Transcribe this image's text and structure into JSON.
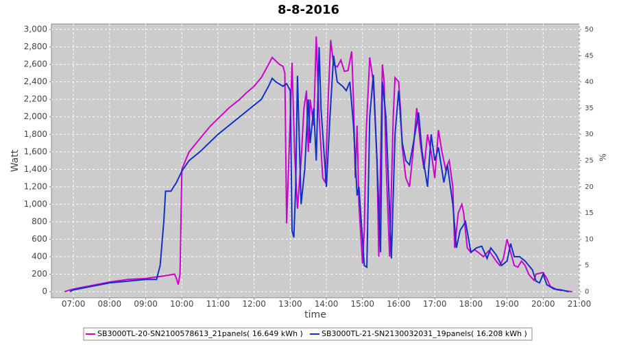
{
  "chart_data": {
    "type": "line",
    "title": "8-8-2016",
    "x_label": "time",
    "y_label": "Watt",
    "y2_label": "%",
    "xlim": [
      6.39,
      21.0
    ],
    "xticks": [
      {
        "value": 7,
        "label": "07:00"
      },
      {
        "value": 8,
        "label": "08:00"
      },
      {
        "value": 9,
        "label": "09:00"
      },
      {
        "value": 10,
        "label": "10:00"
      },
      {
        "value": 11,
        "label": "11:00"
      },
      {
        "value": 12,
        "label": "12:00"
      },
      {
        "value": 13,
        "label": "13:00"
      },
      {
        "value": 14,
        "label": "14:00"
      },
      {
        "value": 15,
        "label": "15:00"
      },
      {
        "value": 16,
        "label": "16:00"
      },
      {
        "value": 17,
        "label": "17:00"
      },
      {
        "value": 18,
        "label": "18:00"
      },
      {
        "value": 19,
        "label": "19:00"
      },
      {
        "value": 20,
        "label": "20:00"
      },
      {
        "value": 21,
        "label": "21:00"
      }
    ],
    "ylim": [
      -70,
      3063
    ],
    "yticks": [
      0,
      200,
      400,
      600,
      800,
      {
        "value": 1000,
        "label": "1,000"
      },
      {
        "value": 1200,
        "label": "1,200"
      },
      {
        "value": 1400,
        "label": "1,400"
      },
      {
        "value": 1600,
        "label": "1,600"
      },
      {
        "value": 1800,
        "label": "1,800"
      },
      {
        "value": 2000,
        "label": "2,000"
      },
      {
        "value": 2200,
        "label": "2,200"
      },
      {
        "value": 2400,
        "label": "2,400"
      },
      {
        "value": 2600,
        "label": "2,600"
      },
      {
        "value": 2800,
        "label": "2,800"
      },
      {
        "value": 3000,
        "label": "3,000"
      }
    ],
    "y2lim": [
      -1.17,
      51.05
    ],
    "y2ticks": [
      0,
      5,
      10,
      15,
      20,
      25,
      30,
      35,
      40,
      45,
      50
    ],
    "grid": true,
    "series": [
      {
        "name": "SB3000TL-20-SN2100578613_21panels( 16.649 kWh )",
        "color": "#cc00cc",
        "x": [
          6.75,
          7.0,
          7.5,
          8.0,
          8.5,
          9.0,
          9.5,
          9.8,
          9.85,
          9.9,
          9.95,
          10.0,
          10.2,
          10.5,
          10.8,
          11.0,
          11.3,
          11.6,
          11.8,
          12.0,
          12.2,
          12.4,
          12.5,
          12.6,
          12.7,
          12.8,
          12.85,
          12.9,
          13.0,
          13.05,
          13.12,
          13.2,
          13.3,
          13.38,
          13.45,
          13.5,
          13.55,
          13.65,
          13.72,
          13.8,
          13.9,
          13.97,
          14.05,
          14.12,
          14.2,
          14.3,
          14.4,
          14.5,
          14.6,
          14.7,
          14.75,
          14.8,
          14.85,
          14.9,
          15.0,
          15.05,
          15.1,
          15.2,
          15.3,
          15.4,
          15.45,
          15.5,
          15.55,
          15.6,
          15.65,
          15.75,
          15.85,
          15.9,
          16.0,
          16.05,
          16.1,
          16.2,
          16.3,
          16.4,
          16.5,
          16.6,
          16.7,
          16.8,
          16.9,
          17.0,
          17.1,
          17.2,
          17.3,
          17.4,
          17.5,
          17.55,
          17.65,
          17.75,
          17.8,
          17.9,
          18.0,
          18.1,
          18.2,
          18.35,
          18.5,
          18.7,
          18.8,
          18.9,
          19.0,
          19.1,
          19.2,
          19.3,
          19.4,
          19.5,
          19.6,
          19.7,
          19.75,
          19.8,
          20.0,
          20.1,
          20.2,
          20.4,
          20.6,
          20.8
        ],
        "values": [
          0,
          30,
          70,
          110,
          140,
          150,
          180,
          200,
          150,
          80,
          200,
          1400,
          1600,
          1750,
          1900,
          1980,
          2100,
          2200,
          2280,
          2350,
          2450,
          2600,
          2680,
          2640,
          2600,
          2580,
          2500,
          780,
          2000,
          2620,
          1600,
          950,
          1500,
          2100,
          2300,
          1600,
          2200,
          1900,
          2920,
          2000,
          1300,
          1250,
          2200,
          2880,
          2600,
          2570,
          2650,
          2520,
          2530,
          2750,
          2200,
          1300,
          1900,
          1000,
          320,
          700,
          1800,
          2680,
          2400,
          1500,
          400,
          1500,
          2600,
          2400,
          1500,
          400,
          2000,
          2450,
          2400,
          2100,
          1650,
          1300,
          1200,
          1600,
          2100,
          1700,
          1400,
          1800,
          1600,
          1300,
          1850,
          1600,
          1400,
          1500,
          1200,
          500,
          900,
          1000,
          900,
          500,
          450,
          480,
          450,
          400,
          470,
          350,
          300,
          380,
          600,
          450,
          300,
          280,
          350,
          300,
          200,
          150,
          130,
          200,
          220,
          150,
          60,
          20,
          10,
          0
        ]
      },
      {
        "name": "SB3000TL-21-SN2130032031_19panels( 16.208 kWh )",
        "color": "#1030c8",
        "x": [
          6.9,
          7.0,
          7.5,
          8.0,
          8.5,
          9.0,
          9.3,
          9.4,
          9.5,
          9.55,
          9.7,
          9.85,
          10.0,
          10.2,
          10.5,
          10.8,
          11.0,
          11.3,
          11.6,
          11.9,
          12.2,
          12.4,
          12.5,
          12.6,
          12.8,
          12.9,
          13.0,
          13.05,
          13.1,
          13.15,
          13.2,
          13.3,
          13.4,
          13.5,
          13.55,
          13.65,
          13.72,
          13.8,
          13.85,
          14.0,
          14.1,
          14.2,
          14.3,
          14.45,
          14.55,
          14.65,
          14.75,
          14.85,
          14.9,
          15.05,
          15.12,
          15.2,
          15.3,
          15.4,
          15.5,
          15.55,
          15.65,
          15.8,
          15.9,
          16.0,
          16.1,
          16.2,
          16.3,
          16.45,
          16.55,
          16.65,
          16.8,
          16.9,
          17.0,
          17.1,
          17.25,
          17.35,
          17.5,
          17.6,
          17.7,
          17.85,
          18.0,
          18.15,
          18.3,
          18.45,
          18.55,
          18.7,
          18.85,
          19.0,
          19.1,
          19.2,
          19.35,
          19.5,
          19.7,
          19.8,
          19.9,
          20.0,
          20.1,
          20.3,
          20.5,
          20.7
        ],
        "values": [
          0,
          20,
          60,
          100,
          120,
          140,
          140,
          300,
          800,
          1150,
          1150,
          1250,
          1380,
          1500,
          1600,
          1720,
          1800,
          1900,
          2000,
          2100,
          2200,
          2350,
          2440,
          2400,
          2350,
          2380,
          2300,
          700,
          620,
          1200,
          2470,
          1000,
          1400,
          2200,
          1700,
          2100,
          1500,
          2800,
          2100,
          1200,
          2000,
          2700,
          2400,
          2350,
          2300,
          2400,
          1900,
          1100,
          1200,
          300,
          280,
          2000,
          2480,
          1500,
          450,
          2400,
          2000,
          380,
          1800,
          2300,
          1700,
          1500,
          1450,
          1800,
          2050,
          1600,
          1200,
          1800,
          1500,
          1650,
          1250,
          1450,
          1000,
          500,
          700,
          800,
          450,
          500,
          520,
          380,
          500,
          420,
          300,
          350,
          550,
          400,
          400,
          350,
          250,
          120,
          100,
          200,
          80,
          30,
          20,
          0
        ]
      }
    ]
  }
}
